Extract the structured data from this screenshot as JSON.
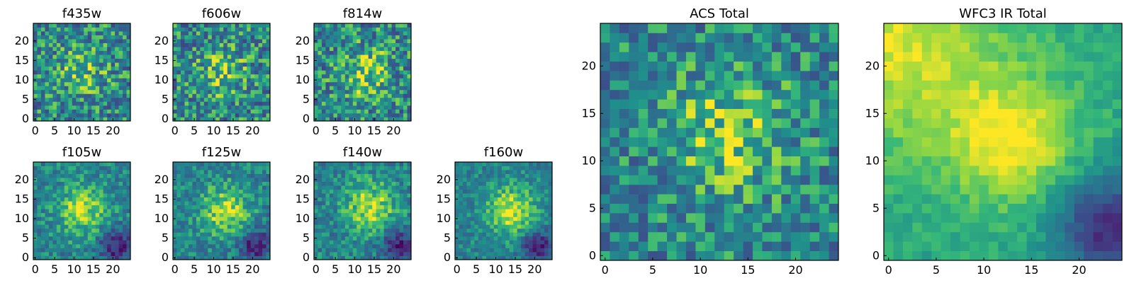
{
  "chart_data": [
    {
      "type": "heatmap",
      "title": "f435w",
      "size": 25,
      "xticks": [
        0,
        5,
        10,
        15,
        20
      ],
      "yticks": [
        0,
        5,
        10,
        15,
        20
      ],
      "xlim": [
        0,
        25
      ],
      "ylim": [
        0,
        25
      ],
      "colormap": "viridis",
      "noise": 0.3,
      "peak": 0.5,
      "center": [
        12,
        12
      ]
    },
    {
      "type": "heatmap",
      "title": "f606w",
      "size": 25,
      "xticks": [
        0,
        5,
        10,
        15,
        20
      ],
      "yticks": [
        0,
        5,
        10,
        15,
        20
      ],
      "xlim": [
        0,
        25
      ],
      "ylim": [
        0,
        25
      ],
      "colormap": "viridis",
      "noise": 0.3,
      "peak": 0.55,
      "center": [
        12,
        12
      ]
    },
    {
      "type": "heatmap",
      "title": "f814w",
      "size": 25,
      "xticks": [
        0,
        5,
        10,
        15,
        20
      ],
      "yticks": [
        0,
        5,
        10,
        15,
        20
      ],
      "xlim": [
        0,
        25
      ],
      "ylim": [
        0,
        25
      ],
      "colormap": "viridis",
      "noise": 0.3,
      "peak": 0.7,
      "center": [
        13,
        12
      ]
    },
    {
      "type": "heatmap",
      "title": "f105w",
      "size": 25,
      "xticks": [
        0,
        5,
        10,
        15,
        20
      ],
      "yticks": [
        0,
        5,
        10,
        15,
        20
      ],
      "xlim": [
        0,
        25
      ],
      "ylim": [
        0,
        25
      ],
      "colormap": "viridis",
      "noise": 0.18,
      "peak": 0.8,
      "center": [
        12,
        12
      ]
    },
    {
      "type": "heatmap",
      "title": "f125w",
      "size": 25,
      "xticks": [
        0,
        5,
        10,
        15,
        20
      ],
      "yticks": [
        0,
        5,
        10,
        15,
        20
      ],
      "xlim": [
        0,
        25
      ],
      "ylim": [
        0,
        25
      ],
      "colormap": "viridis",
      "noise": 0.18,
      "peak": 0.8,
      "center": [
        13,
        12
      ]
    },
    {
      "type": "heatmap",
      "title": "f140w",
      "size": 25,
      "xticks": [
        0,
        5,
        10,
        15,
        20
      ],
      "yticks": [
        0,
        5,
        10,
        15,
        20
      ],
      "xlim": [
        0,
        25
      ],
      "ylim": [
        0,
        25
      ],
      "colormap": "viridis",
      "noise": 0.18,
      "peak": 0.85,
      "center": [
        14,
        13
      ]
    },
    {
      "type": "heatmap",
      "title": "f160w",
      "size": 25,
      "xticks": [
        0,
        5,
        10,
        15,
        20
      ],
      "yticks": [
        0,
        5,
        10,
        15,
        20
      ],
      "xlim": [
        0,
        25
      ],
      "ylim": [
        0,
        25
      ],
      "colormap": "viridis",
      "noise": 0.15,
      "peak": 0.9,
      "center": [
        14,
        12
      ]
    },
    {
      "type": "heatmap",
      "title": "ACS Total",
      "size": 25,
      "xticks": [
        0,
        5,
        10,
        15,
        20
      ],
      "yticks": [
        0,
        5,
        10,
        15,
        20
      ],
      "xlim": [
        0,
        25
      ],
      "ylim": [
        0,
        25
      ],
      "colormap": "viridis",
      "noise": 0.25,
      "peak": 0.65,
      "center": [
        13,
        13
      ]
    },
    {
      "type": "heatmap",
      "title": "WFC3 IR Total",
      "size": 25,
      "xticks": [
        0,
        5,
        10,
        15,
        20
      ],
      "yticks": [
        0,
        5,
        10,
        15,
        20
      ],
      "xlim": [
        0,
        25
      ],
      "ylim": [
        0,
        25
      ],
      "colormap": "viridis",
      "noise": 0.06,
      "peak": 0.95,
      "center": [
        13,
        12
      ]
    }
  ]
}
